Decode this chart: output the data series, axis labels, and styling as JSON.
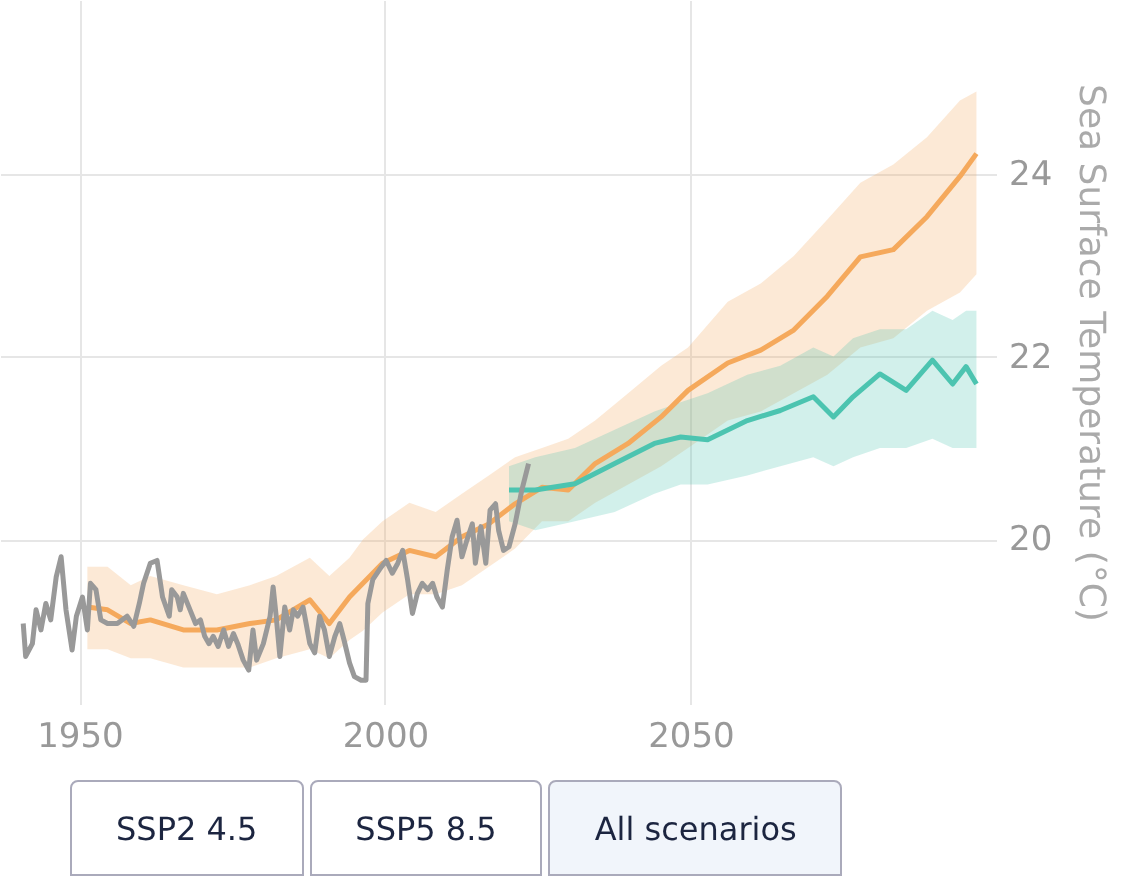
{
  "chart_data": {
    "type": "line",
    "ylabel": "Sea Surface Temperature (°C)",
    "xlim": [
      1937,
      2100
    ],
    "ylim": [
      18.2,
      25.9
    ],
    "xticks": [
      1950,
      2000,
      2050
    ],
    "yticks": [
      20,
      22,
      24
    ],
    "grid": true,
    "annotations": [
      "SSP2 4.5",
      "SSP5 8.5",
      "All scenarios"
    ],
    "series": [
      {
        "color": "#f5a95c",
        "x": [
          1951.3,
          1954.6,
          1958.4,
          1961.6,
          1967,
          1972.5,
          1977.9,
          1982.2,
          1987.7,
          1990.9,
          1994.2,
          1996.4,
          1999.6,
          2004,
          2008.3,
          2012.6,
          2017,
          2021.3,
          2025.7,
          2030,
          2034.4,
          2039.8,
          2045.2,
          2049.6,
          2056.1,
          2061.5,
          2066.9,
          2072.4,
          2077.8,
          2083.2,
          2088.7,
          2094.1,
          2096.8
        ],
        "values": [
          19.26,
          19.23,
          19.08,
          19.12,
          19.01,
          19.01,
          19.08,
          19.12,
          19.34,
          19.08,
          19.37,
          19.52,
          19.74,
          19.88,
          19.81,
          20.03,
          20.17,
          20.39,
          20.57,
          20.54,
          20.83,
          21.05,
          21.34,
          21.63,
          21.93,
          22.07,
          22.29,
          22.66,
          23.09,
          23.17,
          23.53,
          23.97,
          24.22
        ],
        "lower": [
          18.8,
          18.8,
          18.7,
          18.7,
          18.6,
          18.6,
          18.6,
          18.7,
          18.8,
          18.7,
          18.9,
          19.0,
          19.2,
          19.4,
          19.4,
          19.5,
          19.7,
          19.9,
          20.2,
          20.2,
          20.4,
          20.6,
          20.8,
          21.0,
          21.3,
          21.4,
          21.6,
          21.8,
          22.1,
          22.2,
          22.5,
          22.7,
          22.9
        ],
        "upper": [
          19.7,
          19.7,
          19.5,
          19.6,
          19.5,
          19.4,
          19.5,
          19.6,
          19.8,
          19.6,
          19.8,
          20.0,
          20.2,
          20.4,
          20.3,
          20.5,
          20.7,
          20.9,
          21.0,
          21.1,
          21.3,
          21.6,
          21.9,
          22.1,
          22.6,
          22.8,
          23.1,
          23.5,
          23.9,
          24.1,
          24.4,
          24.8,
          24.9
        ]
      },
      {
        "color": "#4cc4b0",
        "x": [
          2020.3,
          2024.6,
          2031.1,
          2037.6,
          2044.1,
          2048.4,
          2052.8,
          2059.3,
          2064.7,
          2070.1,
          2073.4,
          2076.6,
          2081,
          2085.3,
          2089.6,
          2092.9,
          2095.1,
          2096.8
        ],
        "values": [
          20.54,
          20.54,
          20.61,
          20.83,
          21.05,
          21.12,
          21.09,
          21.3,
          21.41,
          21.56,
          21.34,
          21.56,
          21.81,
          21.63,
          21.96,
          21.7,
          21.89,
          21.7
        ],
        "lower": [
          20.2,
          20.1,
          20.2,
          20.3,
          20.5,
          20.6,
          20.6,
          20.7,
          20.8,
          20.9,
          20.8,
          20.9,
          21.0,
          21.0,
          21.1,
          21.0,
          21.0,
          21.0
        ],
        "upper": [
          20.8,
          20.9,
          21.0,
          21.2,
          21.4,
          21.5,
          21.6,
          21.8,
          21.9,
          22.1,
          22.0,
          22.2,
          22.3,
          22.3,
          22.5,
          22.4,
          22.5,
          22.5
        ]
      },
      {
        "color": "#999999",
        "x": [
          1940.8,
          1941.2,
          1942.3,
          1942.9,
          1943.7,
          1944.5,
          1945.3,
          1946.2,
          1947,
          1947.8,
          1948.8,
          1949.5,
          1950.5,
          1951.3,
          1951.8,
          1952.7,
          1953.5,
          1954.6,
          1956.2,
          1957.8,
          1958.9,
          1959.8,
          1960.5,
          1961.6,
          1962.7,
          1963.6,
          1964.7,
          1965.1,
          1966,
          1966.5,
          1967,
          1968.1,
          1969,
          1969.8,
          1970.5,
          1971.2,
          1971.9,
          1972.7,
          1973.6,
          1974.4,
          1975.2,
          1975.9,
          1976.8,
          1977.7,
          1978.4,
          1979,
          1980.1,
          1981.2,
          1981.7,
          1982.2,
          1982.8,
          1983.6,
          1984.4,
          1985,
          1985.7,
          1986.6,
          1987.1,
          1987.7,
          1988.5,
          1989.3,
          1990.1,
          1990.9,
          1991.8,
          1992.6,
          1993.3,
          1994.2,
          1995,
          1996.1,
          1996.9,
          1997.2,
          1998,
          1999.1,
          2000.2,
          2001.2,
          2002.1,
          2002.9,
          2003.7,
          2004.5,
          2005.3,
          2006.1,
          2007,
          2007.8,
          2008.5,
          2009.4,
          2010.2,
          2011,
          2011.8,
          2012.6,
          2013.4,
          2014.3,
          2014.8,
          2015.7,
          2016.5,
          2017.2,
          2018.1,
          2018.6,
          2019.4,
          2020.3,
          2021.3,
          2022.4,
          2023.5
        ],
        "values": [
          19.08,
          18.72,
          18.86,
          19.23,
          19.01,
          19.3,
          19.12,
          19.59,
          19.81,
          19.23,
          18.79,
          19.16,
          19.37,
          19.01,
          19.52,
          19.45,
          19.12,
          19.08,
          19.08,
          19.16,
          19.05,
          19.3,
          19.52,
          19.74,
          19.77,
          19.37,
          19.16,
          19.45,
          19.37,
          19.23,
          19.41,
          19.23,
          19.08,
          19.12,
          18.94,
          18.86,
          18.94,
          18.83,
          19.01,
          18.83,
          18.97,
          18.86,
          18.68,
          18.57,
          19.01,
          18.68,
          18.86,
          19.16,
          19.48,
          19.16,
          18.72,
          19.26,
          19.01,
          19.23,
          19.16,
          19.26,
          19.08,
          18.86,
          18.76,
          19.16,
          19.01,
          18.72,
          18.94,
          19.08,
          18.9,
          18.65,
          18.5,
          18.46,
          18.46,
          19.3,
          19.56,
          19.67,
          19.77,
          19.63,
          19.74,
          19.88,
          19.56,
          19.19,
          19.41,
          19.52,
          19.45,
          19.52,
          19.37,
          19.26,
          19.67,
          20.03,
          20.21,
          19.81,
          19.99,
          20.17,
          19.74,
          20.14,
          19.74,
          20.32,
          20.39,
          20.1,
          19.88,
          19.92,
          20.17,
          20.54,
          20.83
        ]
      }
    ]
  }
}
